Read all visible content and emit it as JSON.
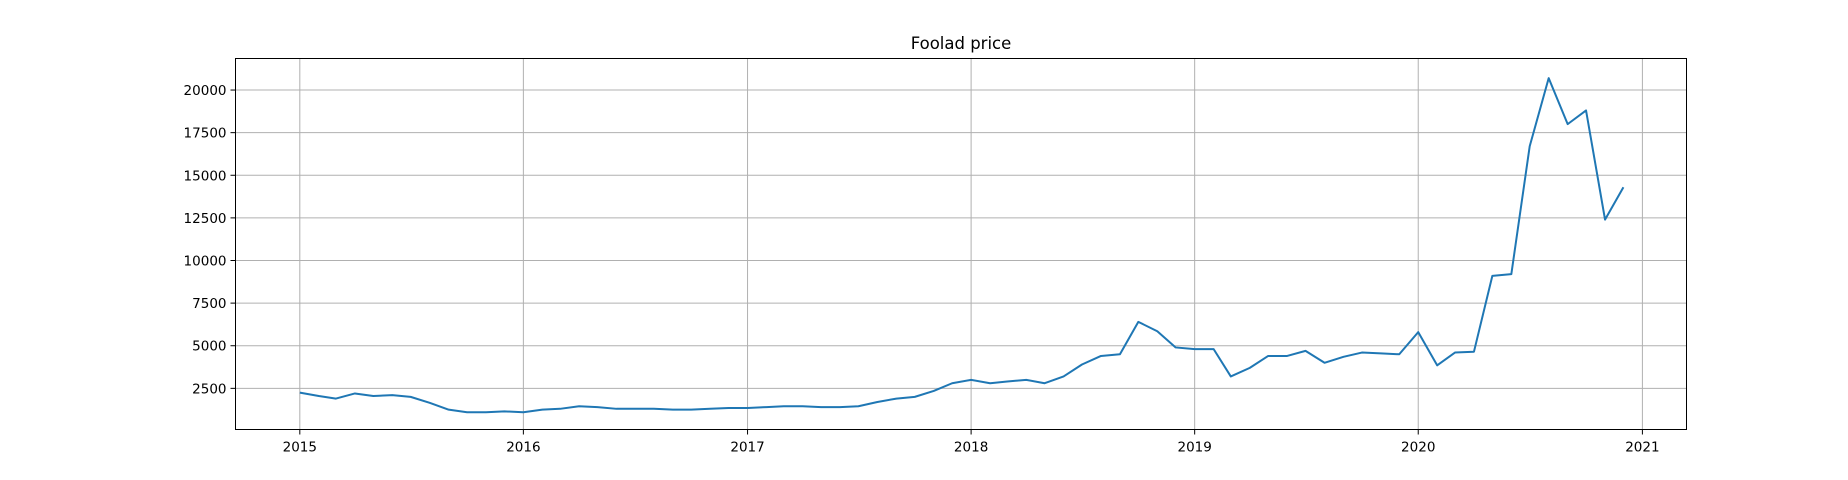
{
  "chart_data": {
    "type": "line",
    "title": "Foolad price",
    "xlabel": "",
    "ylabel": "",
    "grid": true,
    "xlim": [
      "2014-09-18",
      "2021-03-14"
    ],
    "ylim": [
      86,
      21850
    ],
    "x_ticks": [
      "2015",
      "2016",
      "2017",
      "2018",
      "2019",
      "2020",
      "2021"
    ],
    "y_ticks": [
      2500,
      5000,
      7500,
      10000,
      12500,
      15000,
      17500,
      20000
    ],
    "line_color": "#1f77b4",
    "series": [
      {
        "x": [
          "2015-01-01",
          "2015-02-01",
          "2015-03-01",
          "2015-04-01",
          "2015-05-01",
          "2015-06-01",
          "2015-07-01",
          "2015-08-01",
          "2015-09-01",
          "2015-10-01",
          "2015-11-01",
          "2015-12-01",
          "2016-01-01",
          "2016-02-01",
          "2016-03-01",
          "2016-04-01",
          "2016-05-01",
          "2016-06-01",
          "2016-07-01",
          "2016-08-01",
          "2016-09-01",
          "2016-10-01",
          "2016-11-01",
          "2016-12-01",
          "2017-01-01",
          "2017-02-01",
          "2017-03-01",
          "2017-04-01",
          "2017-05-01",
          "2017-06-01",
          "2017-07-01",
          "2017-08-01",
          "2017-09-01",
          "2017-10-01",
          "2017-11-01",
          "2017-12-01",
          "2018-01-01",
          "2018-02-01",
          "2018-03-01",
          "2018-04-01",
          "2018-05-01",
          "2018-06-01",
          "2018-07-01",
          "2018-08-01",
          "2018-09-01",
          "2018-10-01",
          "2018-11-01",
          "2018-12-01",
          "2019-01-01",
          "2019-02-01",
          "2019-03-01",
          "2019-04-01",
          "2019-05-01",
          "2019-06-01",
          "2019-07-01",
          "2019-08-01",
          "2019-09-01",
          "2019-10-01",
          "2019-11-01",
          "2019-12-01",
          "2020-01-01",
          "2020-02-01",
          "2020-03-01",
          "2020-04-01",
          "2020-05-01",
          "2020-06-01",
          "2020-07-01",
          "2020-08-01",
          "2020-09-01",
          "2020-10-01",
          "2020-11-01",
          "2020-12-01"
        ],
        "values": [
          2250,
          2050,
          1900,
          2200,
          2050,
          2100,
          2000,
          1650,
          1250,
          1100,
          1100,
          1150,
          1100,
          1250,
          1300,
          1450,
          1400,
          1300,
          1300,
          1300,
          1250,
          1250,
          1300,
          1350,
          1350,
          1400,
          1450,
          1450,
          1400,
          1400,
          1450,
          1700,
          1900,
          2000,
          2350,
          2800,
          3000,
          2800,
          2900,
          3000,
          2800,
          3200,
          3900,
          4400,
          4500,
          6400,
          5850,
          4900,
          4800,
          4800,
          3200,
          3700,
          4400,
          4400,
          4700,
          4000,
          4350,
          4600,
          4550,
          4500,
          5800,
          3850,
          4600,
          4650,
          9100,
          9200,
          16700,
          20700,
          18000,
          18800,
          12400,
          14300
        ]
      }
    ]
  }
}
